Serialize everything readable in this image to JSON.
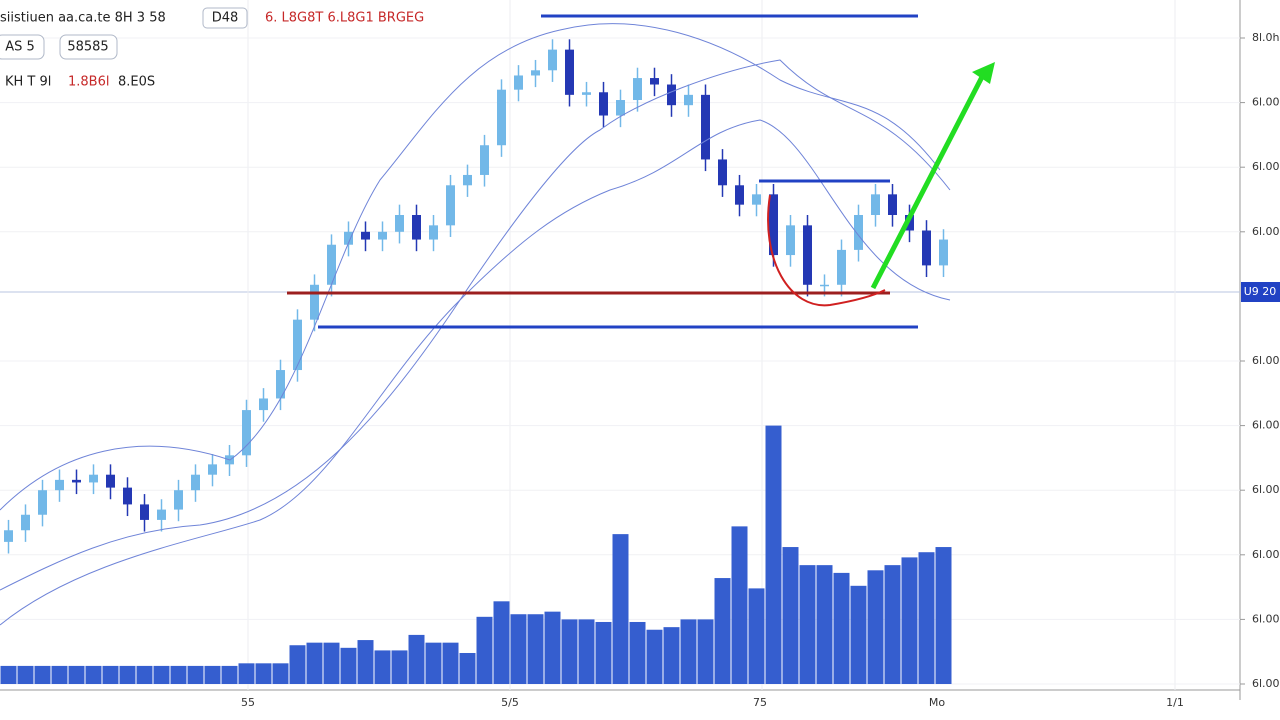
{
  "chart_data": {
    "type": "candlestick",
    "header": [
      "siistiuen aa.ca.te  8H 3 58",
      "D48",
      "6. L8G8T 6.L8G1 BRGEG"
    ],
    "badges": [
      "AS 5",
      "58585"
    ],
    "info": [
      "KH T 9l",
      "1.8B6l",
      "8.E0S"
    ],
    "price_tag": "U9 20",
    "xtick_labels": [
      "55",
      "5/5",
      "75",
      "Mo",
      "1/1"
    ],
    "up_color": "#72b8e8",
    "down_color": "#2438b4",
    "volume_color": "#2a55cc",
    "grid": true,
    "ylim": [
      50,
      100
    ],
    "yticks": [
      {
        "value": 100,
        "label": "8l.0h"
      },
      {
        "value": 95,
        "label": "6l.00"
      },
      {
        "value": 90,
        "label": "6l.00"
      },
      {
        "value": 85,
        "label": "6l.00"
      },
      {
        "value": 75,
        "label": "6l.00"
      },
      {
        "value": 70,
        "label": "6l.00"
      },
      {
        "value": 65,
        "label": "6l.00"
      },
      {
        "value": 60,
        "label": "6l.00"
      },
      {
        "value": 55,
        "label": "6l.00"
      },
      {
        "value": 50,
        "label": "6l.00"
      }
    ],
    "y2lim": [
      0,
      250
    ],
    "open": [
      61.0,
      61.9,
      63.1,
      65.0,
      65.8,
      65.6,
      66.2,
      65.2,
      63.9,
      62.7,
      63.5,
      65.0,
      66.2,
      67.0,
      67.7,
      71.2,
      72.1,
      74.3,
      78.2,
      80.9,
      84.0,
      85.0,
      84.4,
      85.0,
      86.3,
      84.4,
      85.5,
      88.6,
      89.4,
      91.7,
      96.0,
      97.1,
      97.5,
      99.1,
      95.6,
      95.8,
      94.0,
      95.2,
      96.9,
      96.4,
      94.8,
      95.6,
      90.6,
      88.6,
      87.1,
      87.9,
      83.2,
      85.5,
      80.9,
      80.9,
      83.6,
      86.3,
      87.9,
      86.3,
      85.1,
      82.4
    ],
    "high": [
      62.7,
      63.9,
      65.8,
      66.6,
      66.6,
      67.0,
      67.0,
      66.0,
      64.7,
      64.3,
      65.8,
      67.0,
      67.8,
      68.5,
      72.0,
      72.9,
      75.1,
      79.0,
      81.7,
      84.8,
      85.8,
      85.8,
      85.8,
      87.1,
      87.1,
      86.3,
      89.4,
      90.2,
      92.5,
      96.8,
      97.9,
      98.3,
      99.9,
      99.9,
      96.6,
      96.6,
      96.0,
      97.7,
      97.7,
      97.2,
      96.4,
      96.4,
      91.4,
      89.4,
      88.7,
      88.7,
      86.3,
      86.3,
      81.7,
      84.4,
      87.1,
      88.7,
      88.7,
      87.1,
      85.9,
      85.2
    ],
    "low": [
      60.1,
      61.0,
      62.2,
      64.1,
      64.7,
      64.7,
      64.3,
      63.0,
      61.8,
      61.8,
      62.6,
      64.1,
      65.3,
      66.1,
      66.8,
      70.3,
      71.2,
      73.4,
      77.3,
      80.0,
      83.1,
      83.5,
      83.5,
      84.1,
      83.5,
      83.5,
      84.6,
      87.7,
      88.5,
      90.8,
      95.1,
      96.2,
      96.6,
      94.7,
      94.7,
      93.1,
      93.1,
      94.3,
      95.5,
      93.9,
      93.9,
      89.7,
      87.7,
      86.2,
      86.2,
      82.3,
      82.3,
      80.0,
      80.0,
      80.0,
      82.7,
      85.4,
      85.4,
      84.2,
      81.5,
      81.5
    ],
    "close": [
      61.9,
      63.1,
      65.0,
      65.8,
      65.6,
      66.2,
      65.2,
      63.9,
      62.7,
      63.5,
      65.0,
      66.2,
      67.0,
      67.7,
      71.2,
      72.1,
      74.3,
      78.2,
      80.9,
      84.0,
      85.0,
      84.4,
      85.0,
      86.3,
      84.4,
      85.5,
      88.6,
      89.4,
      91.7,
      96.0,
      97.1,
      97.5,
      99.1,
      95.6,
      95.8,
      94.0,
      95.2,
      96.9,
      96.4,
      94.8,
      95.6,
      90.6,
      88.6,
      87.1,
      87.9,
      83.2,
      85.5,
      80.9,
      80.9,
      83.6,
      86.3,
      87.9,
      86.3,
      85.1,
      82.4,
      84.4
    ],
    "volume": [
      7,
      7,
      7,
      7,
      7,
      7,
      7,
      7,
      7,
      7,
      7,
      7,
      7,
      7,
      8,
      8,
      8,
      15,
      16,
      16,
      14,
      17,
      13,
      13,
      19,
      16,
      16,
      12,
      26,
      32,
      27,
      27,
      28,
      25,
      25,
      24,
      58,
      24,
      21,
      22,
      25,
      25,
      41,
      61,
      37,
      100,
      53,
      46,
      46,
      43,
      38,
      44,
      46,
      49,
      51,
      53
    ]
  }
}
